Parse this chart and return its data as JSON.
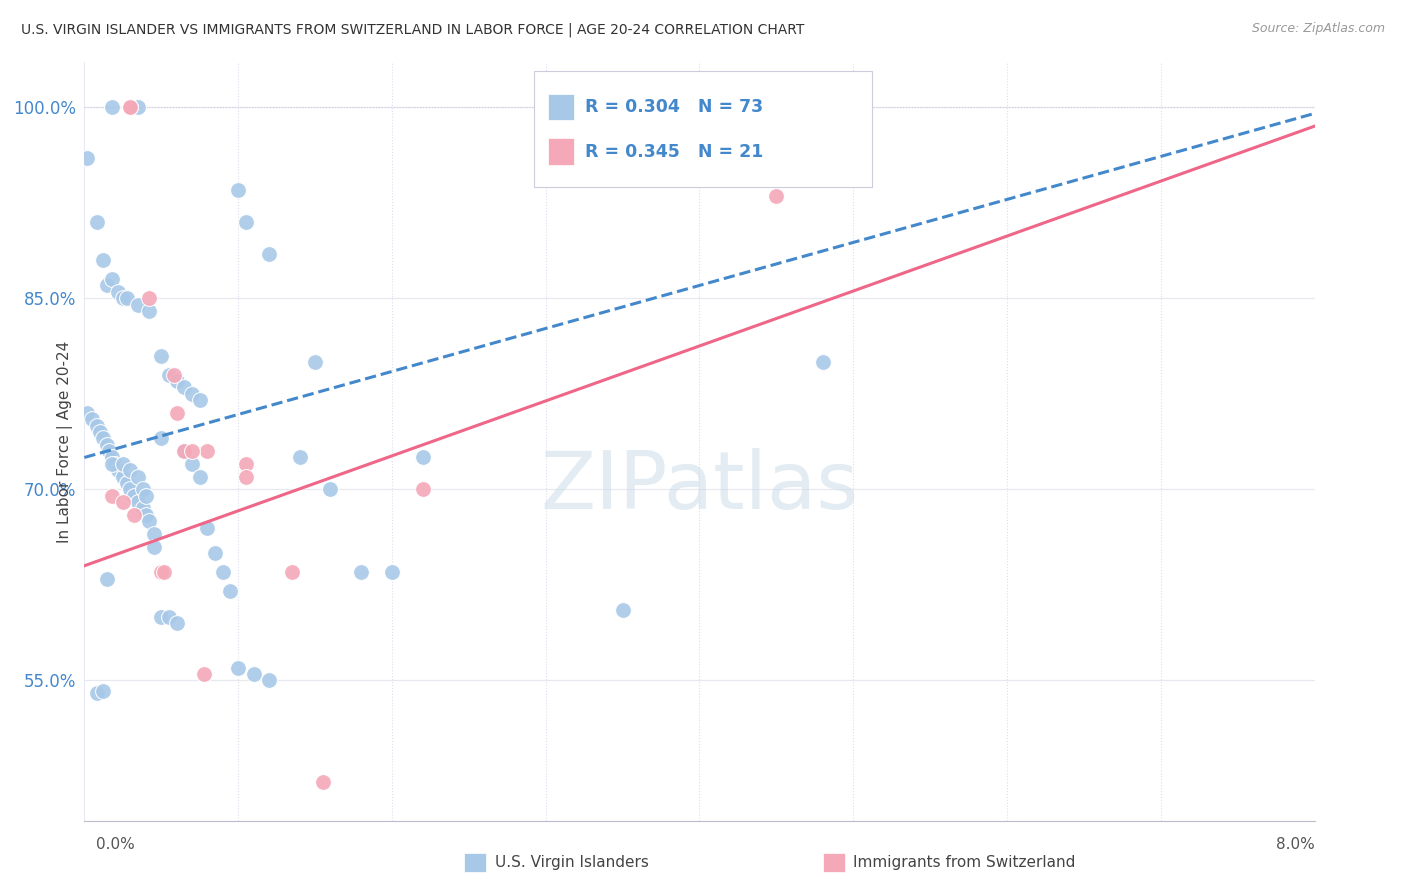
{
  "title": "U.S. VIRGIN ISLANDER VS IMMIGRANTS FROM SWITZERLAND IN LABOR FORCE | AGE 20-24 CORRELATION CHART",
  "source": "Source: ZipAtlas.com",
  "ylabel": "In Labor Force | Age 20-24",
  "xlim": [
    0.0,
    8.0
  ],
  "ylim": [
    44.0,
    103.5
  ],
  "yticks": [
    55.0,
    70.0,
    85.0,
    100.0
  ],
  "ytick_labels": [
    "55.0%",
    "70.0%",
    "85.0%",
    "100.0%"
  ],
  "blue_R": 0.304,
  "blue_N": 73,
  "pink_R": 0.345,
  "pink_N": 21,
  "blue_color": "#a8c8e8",
  "pink_color": "#f4a8b8",
  "blue_line_color": "#4488cc",
  "pink_line_color": "#ee6688",
  "legend_text_color": "#4488cc",
  "background_color": "#ffffff",
  "grid_color": "#e8e8f0",
  "watermark": "ZIPatlas",
  "blue_scatter_x": [
    0.18,
    0.35,
    0.02,
    0.08,
    0.12,
    0.15,
    0.18,
    0.22,
    0.25,
    0.28,
    0.35,
    0.42,
    0.5,
    0.55,
    0.6,
    0.65,
    0.7,
    0.75,
    0.02,
    0.05,
    0.08,
    0.1,
    0.12,
    0.15,
    0.16,
    0.18,
    0.2,
    0.22,
    0.25,
    0.28,
    0.3,
    0.32,
    0.35,
    0.38,
    0.4,
    0.42,
    0.45,
    0.5,
    1.0,
    1.05,
    1.2,
    1.5,
    1.8,
    2.0,
    3.5,
    4.8,
    0.08,
    0.12,
    0.15,
    0.18,
    0.25,
    0.3,
    0.35,
    0.38,
    0.4,
    0.45,
    0.5,
    0.55,
    0.6,
    0.65,
    0.7,
    0.75,
    0.8,
    0.85,
    0.9,
    0.95,
    1.0,
    1.1,
    1.2,
    1.4,
    1.6,
    2.2,
    4.5
  ],
  "blue_scatter_y": [
    100.0,
    100.0,
    96.0,
    91.0,
    88.0,
    86.0,
    86.5,
    85.5,
    85.0,
    85.0,
    84.5,
    84.0,
    80.5,
    79.0,
    78.5,
    78.0,
    77.5,
    77.0,
    76.0,
    75.5,
    75.0,
    74.5,
    74.0,
    73.5,
    73.0,
    72.5,
    72.0,
    71.5,
    71.0,
    70.5,
    70.0,
    69.5,
    69.0,
    68.5,
    68.0,
    67.5,
    66.5,
    74.0,
    93.5,
    91.0,
    88.5,
    80.0,
    63.5,
    63.5,
    60.5,
    80.0,
    54.0,
    54.2,
    63.0,
    72.0,
    72.0,
    71.5,
    71.0,
    70.0,
    69.5,
    65.5,
    60.0,
    60.0,
    59.5,
    73.0,
    72.0,
    71.0,
    67.0,
    65.0,
    63.5,
    62.0,
    56.0,
    55.5,
    55.0,
    72.5,
    70.0,
    72.5,
    100.0
  ],
  "pink_scatter_x": [
    0.3,
    0.3,
    0.42,
    0.58,
    0.65,
    0.8,
    1.05,
    0.18,
    0.25,
    0.32,
    0.5,
    0.52,
    2.2,
    0.6,
    0.7,
    0.78,
    1.05,
    1.35,
    1.55,
    3.4,
    4.5
  ],
  "pink_scatter_y": [
    100.0,
    100.0,
    85.0,
    79.0,
    73.0,
    73.0,
    72.0,
    69.5,
    69.0,
    68.0,
    63.5,
    63.5,
    70.0,
    76.0,
    73.0,
    55.5,
    71.0,
    63.5,
    47.0,
    100.0,
    93.0
  ],
  "blue_trendline_x": [
    0.0,
    8.0
  ],
  "blue_trendline_y": [
    72.5,
    99.5
  ],
  "pink_trendline_x": [
    0.0,
    8.0
  ],
  "pink_trendline_y": [
    64.0,
    98.5
  ]
}
